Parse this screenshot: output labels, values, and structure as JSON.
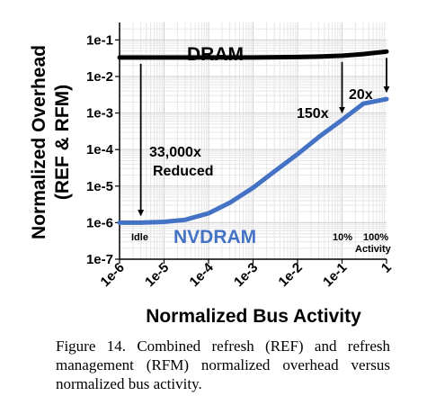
{
  "chart_data": {
    "type": "line",
    "xlabel": "Normalized Bus Activity",
    "ylabel": [
      "Normalized Overhead",
      "(REF & RFM)"
    ],
    "xlog": true,
    "ylog": true,
    "xlim": [
      1e-06,
      1
    ],
    "ylim": [
      1e-07,
      0.3
    ],
    "xticks": [
      {
        "v": 1e-06,
        "label": "1e-6"
      },
      {
        "v": 1e-05,
        "label": "1e-5"
      },
      {
        "v": 0.0001,
        "label": "1e-4"
      },
      {
        "v": 0.001,
        "label": "1e-3"
      },
      {
        "v": 0.01,
        "label": "1e-2"
      },
      {
        "v": 0.1,
        "label": "1e-1"
      },
      {
        "v": 1,
        "label": "1"
      }
    ],
    "yticks": [
      {
        "v": 0.1,
        "label": "1e-1"
      },
      {
        "v": 0.01,
        "label": "1e-2"
      },
      {
        "v": 0.001,
        "label": "1e-3"
      },
      {
        "v": 0.0001,
        "label": "1e-4"
      },
      {
        "v": 1e-05,
        "label": "1e-5"
      },
      {
        "v": 1e-06,
        "label": "1e-6"
      },
      {
        "v": 1e-07,
        "label": "1e-7"
      }
    ],
    "grid": true,
    "series": [
      {
        "name": "DRAM",
        "color": "#000000",
        "x": [
          1e-06,
          1e-05,
          0.0001,
          0.001,
          0.01,
          0.03,
          0.1,
          0.3,
          1
        ],
        "y": [
          0.033,
          0.033,
          0.033,
          0.033,
          0.034,
          0.035,
          0.037,
          0.041,
          0.048
        ]
      },
      {
        "name": "NVDRAM",
        "color": "#4472C4",
        "x": [
          1e-06,
          3e-06,
          1e-05,
          3e-05,
          0.0001,
          0.0003,
          0.001,
          0.003,
          0.01,
          0.03,
          0.1,
          0.3,
          1
        ],
        "y": [
          1e-06,
          1e-06,
          1.05e-06,
          1.2e-06,
          1.8e-06,
          3.5e-06,
          9e-06,
          2.5e-05,
          7.5e-05,
          0.00022,
          0.00065,
          0.0018,
          0.0024
        ]
      }
    ],
    "annotations": [
      {
        "text": "DRAM",
        "role": "series-label"
      },
      {
        "text": "NVDRAM",
        "role": "series-label"
      },
      {
        "text": "33,000x",
        "role": "ratio"
      },
      {
        "text": "Reduced",
        "role": "ratio"
      },
      {
        "text": "150x",
        "role": "ratio"
      },
      {
        "text": "20x",
        "role": "ratio"
      },
      {
        "text": "Idle",
        "role": "point-label"
      },
      {
        "text": "10%",
        "role": "point-label"
      },
      {
        "text": "100%",
        "role": "point-label"
      },
      {
        "text": "Activity",
        "role": "point-label"
      }
    ],
    "caption": "Figure 14. Combined refresh (REF) and refresh management (RFM) normalized overhead versus normalized bus activity."
  }
}
